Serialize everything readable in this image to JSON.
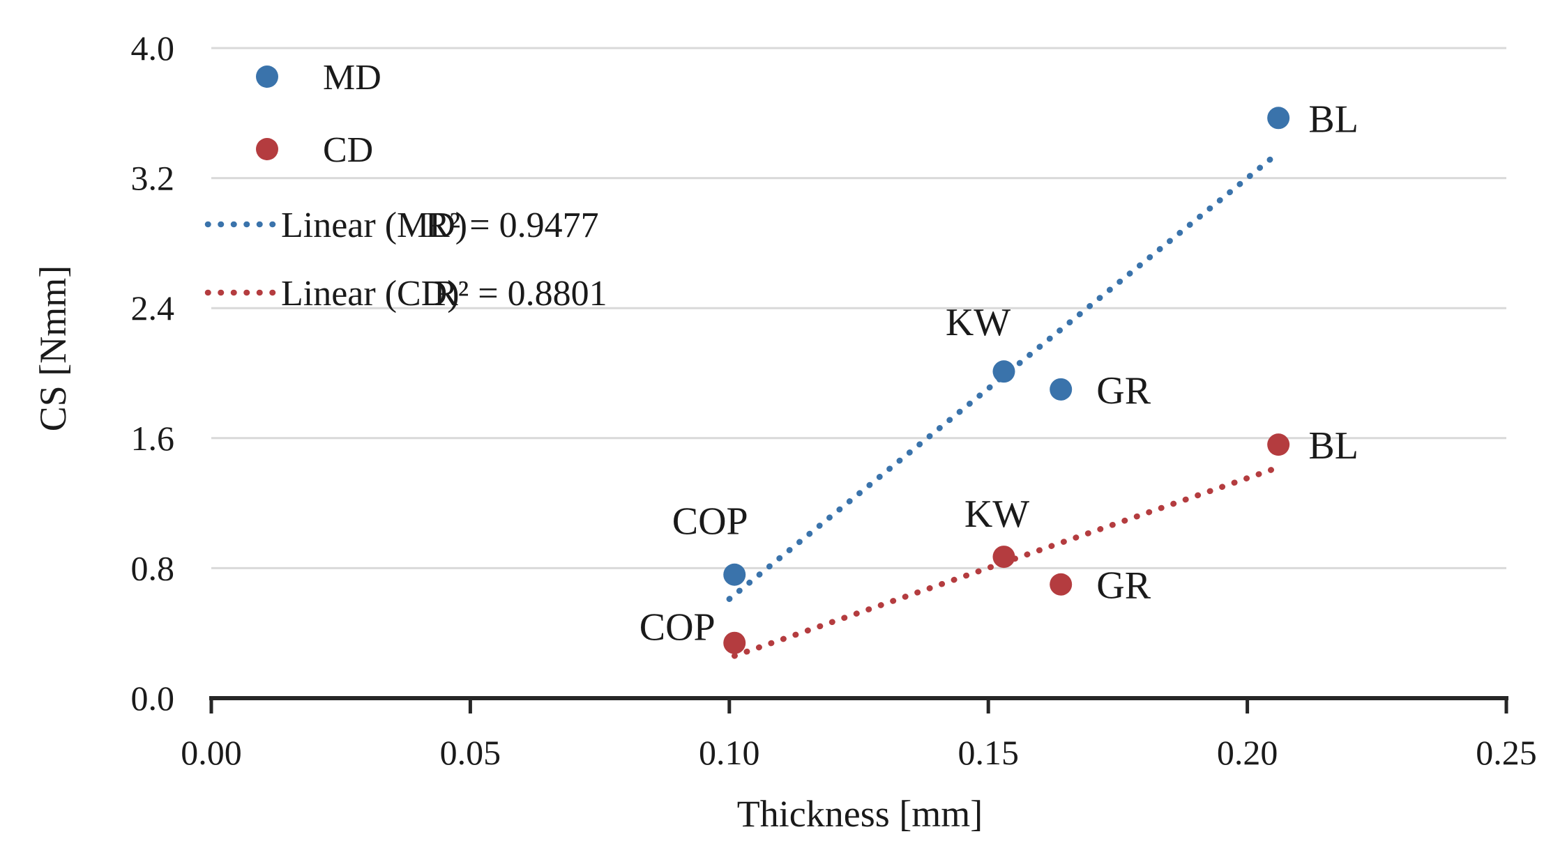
{
  "chart_data": {
    "type": "scatter",
    "title": "",
    "xlabel": "Thickness [mm]",
    "ylabel": "CS [Nmm]",
    "xlim": [
      0,
      0.25
    ],
    "ylim": [
      0,
      4.0
    ],
    "x_ticks": [
      0.0,
      0.05,
      0.1,
      0.15,
      0.2,
      0.25
    ],
    "x_tick_labels": [
      "0.00",
      "0.05",
      "0.10",
      "0.15",
      "0.20",
      "0.25"
    ],
    "y_ticks": [
      0.0,
      0.8,
      1.6,
      2.4,
      3.2,
      4.0
    ],
    "y_tick_labels": [
      "0.0",
      "0.8",
      "1.6",
      "2.4",
      "3.2",
      "4.0"
    ],
    "grid": true,
    "legend_position": "inside-top-left",
    "colors": {
      "md_blue": "#3A73AB",
      "cd_red": "#B43C3F",
      "gridline": "#D9D9D9",
      "axis": "#262626",
      "text": "#1a1a1a"
    },
    "series": [
      {
        "name": "MD",
        "color": "#3A73AB",
        "points": [
          {
            "label": "COP",
            "x": 0.101,
            "y": 0.76
          },
          {
            "label": "KW",
            "x": 0.153,
            "y": 2.01
          },
          {
            "label": "GR",
            "x": 0.164,
            "y": 1.9
          },
          {
            "label": "BL",
            "x": 0.206,
            "y": 3.57
          }
        ]
      },
      {
        "name": "CD",
        "color": "#B43C3F",
        "points": [
          {
            "label": "COP",
            "x": 0.101,
            "y": 0.34
          },
          {
            "label": "KW",
            "x": 0.153,
            "y": 0.87
          },
          {
            "label": "GR",
            "x": 0.164,
            "y": 0.7
          },
          {
            "label": "BL",
            "x": 0.206,
            "y": 1.56
          }
        ]
      }
    ],
    "trendlines": [
      {
        "name": "Linear (MD)",
        "r2_label": "R² = 0.9477",
        "color": "#3A73AB",
        "x1": 0.1,
        "y1": 0.61,
        "x2": 0.205,
        "y2": 3.33
      },
      {
        "name": "Linear (CD)",
        "r2_label": "R² = 0.8801",
        "color": "#B43C3F",
        "x1": 0.101,
        "y1": 0.26,
        "x2": 0.206,
        "y2": 1.42
      }
    ]
  }
}
